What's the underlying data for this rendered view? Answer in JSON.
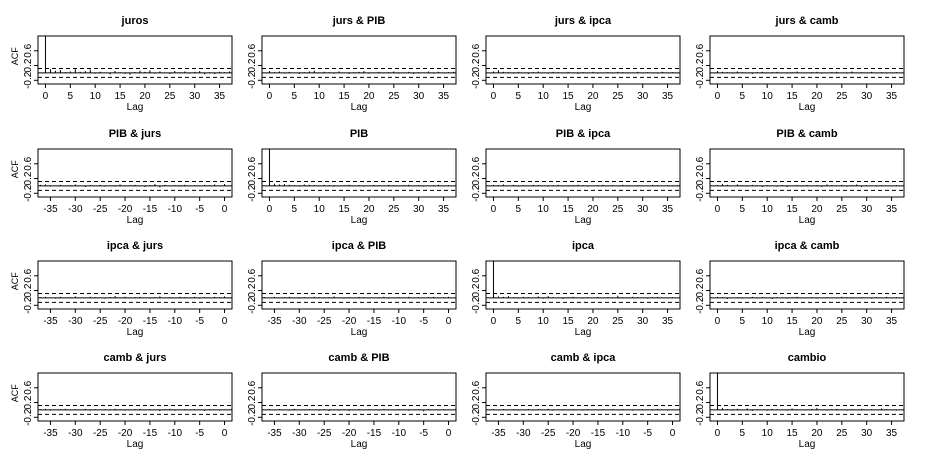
{
  "chart_data": {
    "type": "acf-matrix",
    "xlabel": "Lag",
    "ylabel": "ACF",
    "ylim": [
      -0.3,
      1.0
    ],
    "yticks": [
      -0.2,
      0.2,
      0.6
    ],
    "ci": 0.12,
    "positive_xticks": [
      0,
      5,
      10,
      15,
      20,
      25,
      30,
      35
    ],
    "negative_xticks": [
      -35,
      -30,
      -25,
      -20,
      -15,
      -10,
      -5,
      0
    ],
    "panels": [
      {
        "title": "juros",
        "lags": "positive",
        "acf": [
          1.0,
          0.1,
          0.06,
          0.08,
          0.02,
          0.04,
          0.1,
          0.03,
          0.05,
          0.09,
          -0.02,
          0.03,
          0.01,
          -0.04,
          0.05,
          0.02,
          -0.03,
          -0.05,
          0.02,
          0.06,
          0.03,
          0.07,
          -0.02,
          0.04,
          0.0,
          -0.03,
          0.05,
          0.02,
          0.04,
          -0.02,
          0.03,
          0.05,
          -0.04,
          0.02,
          -0.03,
          0.03,
          0.02,
          0.04
        ]
      },
      {
        "title": "jurs & PIB",
        "lags": "positive",
        "acf": [
          0.05,
          0.02,
          0.04,
          -0.02,
          0.03,
          0.01,
          -0.03,
          0.02,
          0.04,
          0.06,
          -0.01,
          0.03,
          0.02,
          -0.02,
          0.04,
          0.01,
          -0.03,
          0.02,
          0.03,
          0.05,
          -0.02,
          0.01,
          0.03,
          -0.01,
          0.02,
          0.04,
          -0.02,
          0.01,
          0.03,
          -0.03,
          0.02,
          0.01,
          0.04,
          -0.02,
          0.03,
          0.01,
          0.02,
          0.03
        ]
      },
      {
        "title": "jurs & ipca",
        "lags": "positive",
        "acf": [
          0.04,
          0.07,
          0.03,
          0.02,
          -0.02,
          0.03,
          0.01,
          -0.03,
          0.02,
          0.04,
          0.01,
          -0.02,
          0.03,
          0.02,
          -0.01,
          0.03,
          0.01,
          -0.03,
          0.02,
          0.01,
          0.03,
          -0.02,
          0.01,
          0.02,
          -0.01,
          0.03,
          0.02,
          -0.02,
          0.01,
          0.03,
          -0.01,
          0.02,
          0.01,
          -0.02,
          0.03,
          0.01,
          0.02,
          -0.01
        ]
      },
      {
        "title": "jurs & camb",
        "lags": "positive",
        "acf": [
          0.05,
          0.03,
          0.02,
          -0.02,
          0.04,
          0.02,
          0.01,
          -0.03,
          0.02,
          0.03,
          -0.01,
          0.02,
          0.03,
          0.01,
          -0.02,
          0.02,
          0.04,
          0.01,
          -0.01,
          0.02,
          0.03,
          -0.02,
          0.01,
          0.02,
          0.03,
          0.01,
          -0.02,
          0.04,
          0.01,
          0.02,
          -0.01,
          0.03,
          0.01,
          0.02,
          -0.02,
          0.01,
          0.02,
          0.01
        ]
      },
      {
        "title": "PIB & jurs",
        "lags": "negative",
        "acf": [
          0.03,
          0.04,
          -0.02,
          0.01,
          0.03,
          -0.01,
          0.02,
          0.04,
          0.01,
          -0.03,
          0.02,
          0.01,
          0.03,
          -0.02,
          0.01,
          0.02,
          0.04,
          -0.01,
          0.02,
          0.03,
          0.01,
          -0.03,
          0.02,
          0.05,
          -0.04,
          0.03,
          0.01,
          0.02,
          -0.02,
          0.03,
          0.01,
          0.02,
          -0.01,
          0.03,
          0.02,
          0.04,
          0.01,
          0.05
        ]
      },
      {
        "title": "PIB",
        "lags": "positive",
        "acf": [
          1.0,
          0.06,
          0.04,
          0.05,
          0.03,
          0.02,
          -0.02,
          0.04,
          0.03,
          0.02,
          -0.01,
          0.03,
          0.02,
          -0.02,
          0.01,
          0.02,
          0.03,
          0.0,
          0.02,
          -0.02,
          0.01,
          0.03,
          0.02,
          0.01,
          0.03,
          0.02,
          -0.01,
          0.02,
          0.03,
          0.01,
          0.02,
          -0.02,
          0.01,
          0.02,
          0.03,
          -0.01,
          0.02,
          0.01
        ]
      },
      {
        "title": "PIB & ipca",
        "lags": "positive",
        "acf": [
          0.03,
          0.02,
          0.04,
          0.01,
          0.03,
          -0.02,
          0.02,
          0.01,
          0.03,
          0.02,
          0.01,
          -0.02,
          0.02,
          0.03,
          0.01,
          -0.01,
          0.02,
          0.03,
          0.02,
          -0.02,
          0.01,
          0.02,
          0.03,
          -0.01,
          0.02,
          0.01,
          0.03,
          -0.02,
          0.01,
          0.02,
          0.01,
          -0.01,
          0.03,
          0.02,
          0.01,
          0.02,
          -0.01,
          0.02
        ]
      },
      {
        "title": "PIB & camb",
        "lags": "positive",
        "acf": [
          0.02,
          0.05,
          0.03,
          0.01,
          0.04,
          0.02,
          -0.02,
          0.03,
          0.02,
          -0.03,
          0.02,
          0.01,
          -0.02,
          0.02,
          -0.03,
          0.01,
          0.02,
          -0.02,
          0.03,
          0.01,
          0.02,
          -0.03,
          0.04,
          0.02,
          0.01,
          0.03,
          -0.02,
          0.02,
          0.04,
          -0.03,
          0.02,
          0.01,
          -0.02,
          0.02,
          0.01,
          -0.01,
          0.02,
          0.01
        ]
      },
      {
        "title": "ipca & jurs",
        "lags": "negative",
        "acf": [
          0.02,
          0.03,
          0.01,
          -0.02,
          0.03,
          0.01,
          0.02,
          0.04,
          0.01,
          -0.01,
          0.03,
          0.02,
          0.01,
          -0.02,
          0.02,
          0.05,
          0.01,
          0.03,
          -0.01,
          0.02,
          0.03,
          0.01,
          -0.02,
          0.02,
          0.04,
          0.01,
          0.02,
          -0.01,
          0.03,
          0.02,
          0.01,
          0.03,
          -0.02,
          0.02,
          0.01,
          0.03,
          0.02,
          0.04
        ]
      },
      {
        "title": "ipca & PIB",
        "lags": "negative",
        "acf": [
          0.02,
          0.01,
          0.03,
          -0.01,
          0.02,
          0.03,
          0.01,
          -0.02,
          0.02,
          0.01,
          0.03,
          0.02,
          -0.01,
          0.02,
          0.04,
          0.01,
          -0.02,
          0.02,
          0.01,
          0.03,
          0.02,
          -0.01,
          0.01,
          0.02,
          0.03,
          -0.02,
          0.01,
          0.02,
          0.01,
          0.03,
          -0.01,
          0.02,
          0.01,
          0.02,
          0.03,
          -0.01,
          0.02,
          0.03
        ]
      },
      {
        "title": "ipca",
        "lags": "positive",
        "acf": [
          1.0,
          0.04,
          0.03,
          0.05,
          0.02,
          -0.02,
          0.03,
          0.02,
          0.01,
          0.04,
          -0.02,
          0.05,
          0.02,
          0.01,
          -0.03,
          0.02,
          0.03,
          0.01,
          -0.02,
          0.02,
          0.01,
          0.03,
          -0.01,
          0.02,
          0.01,
          0.06,
          0.02,
          -0.01,
          0.03,
          0.02,
          0.01,
          -0.02,
          0.02,
          0.03,
          0.01,
          -0.01,
          0.02,
          0.01
        ]
      },
      {
        "title": "ipca & camb",
        "lags": "positive",
        "acf": [
          0.03,
          0.02,
          -0.03,
          0.01,
          0.02,
          -0.02,
          0.01,
          0.03,
          -0.01,
          0.02,
          0.01,
          -0.03,
          0.02,
          0.01,
          -0.02,
          0.02,
          0.03,
          -0.01,
          0.01,
          0.02,
          -0.02,
          0.01,
          0.02,
          0.01,
          -0.01,
          0.03,
          0.02,
          -0.02,
          0.01,
          0.02,
          0.01,
          -0.02,
          0.02,
          0.01,
          0.03,
          -0.01,
          0.02,
          0.01
        ]
      },
      {
        "title": "camb & jurs",
        "lags": "negative",
        "acf": [
          0.02,
          0.03,
          -0.02,
          0.01,
          0.02,
          0.03,
          -0.01,
          0.02,
          0.01,
          0.03,
          -0.02,
          0.02,
          0.01,
          0.02,
          -0.01,
          0.03,
          0.02,
          -0.02,
          0.01,
          0.02,
          0.03,
          -0.01,
          0.02,
          0.01,
          -0.03,
          0.02,
          0.03,
          -0.02,
          0.01,
          0.02,
          -0.01,
          0.02,
          0.01,
          -0.03,
          0.02,
          0.01,
          -0.02,
          0.01
        ]
      },
      {
        "title": "camb & PIB",
        "lags": "negative",
        "acf": [
          0.01,
          0.02,
          -0.01,
          0.02,
          0.01,
          -0.02,
          0.03,
          0.01,
          -0.01,
          0.02,
          0.01,
          -0.02,
          0.02,
          -0.03,
          0.01,
          -0.02,
          0.02,
          -0.03,
          0.01,
          0.02,
          -0.01,
          0.02,
          0.01,
          -0.02,
          0.02,
          0.01,
          -0.01,
          0.02,
          0.01,
          -0.02,
          0.01,
          0.02,
          -0.04,
          0.02,
          0.01,
          -0.01,
          0.02,
          0.01
        ]
      },
      {
        "title": "camb & ipca",
        "lags": "negative",
        "acf": [
          0.01,
          0.02,
          -0.01,
          0.02,
          0.01,
          0.02,
          -0.02,
          0.01,
          0.02,
          -0.01,
          0.02,
          0.01,
          0.03,
          -0.02,
          0.01,
          0.02,
          -0.01,
          0.02,
          0.01,
          -0.02,
          0.02,
          0.01,
          -0.01,
          0.02,
          0.01,
          0.02,
          -0.01,
          0.02,
          0.01,
          -0.02,
          0.01,
          0.02,
          0.01,
          -0.02,
          0.03,
          0.01,
          -0.02,
          0.01
        ]
      },
      {
        "title": "cambio",
        "lags": "positive",
        "acf": [
          1.0,
          0.05,
          0.02,
          -0.02,
          0.03,
          0.01,
          0.04,
          -0.03,
          0.02,
          0.01,
          -0.02,
          0.03,
          0.02,
          0.01,
          -0.02,
          0.04,
          0.02,
          0.01,
          -0.01,
          0.03,
          0.05,
          0.01,
          -0.02,
          0.02,
          0.03,
          0.01,
          -0.02,
          0.02,
          0.01,
          0.03,
          -0.01,
          0.02,
          0.01,
          0.04,
          0.02,
          0.01,
          -0.02,
          0.01
        ]
      }
    ]
  }
}
